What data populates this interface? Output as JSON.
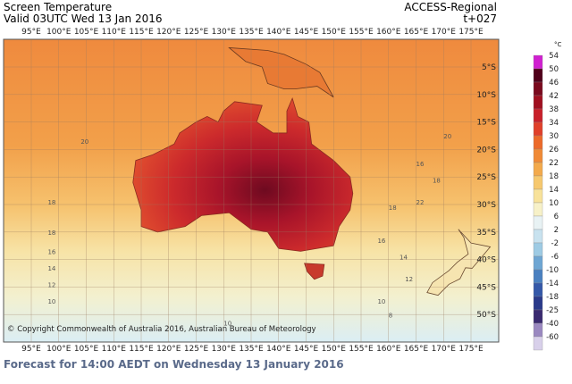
{
  "header": {
    "title": "Screen Temperature",
    "valid": "Valid 03UTC Wed 13 Jan 2016",
    "model": "ACCESS-Regional",
    "lead": "t+027"
  },
  "map": {
    "lon_labels": [
      "95°E",
      "100°E",
      "105°E",
      "110°E",
      "115°E",
      "120°E",
      "125°E",
      "130°E",
      "135°E",
      "140°E",
      "145°E",
      "150°E",
      "155°E",
      "160°E",
      "165°E",
      "170°E",
      "175°E"
    ],
    "lat_labels": [
      "5°S",
      "10°S",
      "15°S",
      "20°S",
      "25°S",
      "30°S",
      "35°S",
      "40°S",
      "45°S",
      "50°S"
    ],
    "contour_labels": [
      "18",
      "18",
      "16",
      "14",
      "12",
      "10",
      "10",
      "20",
      "22",
      "18",
      "16",
      "14",
      "12",
      "10",
      "8",
      "16",
      "18",
      "20"
    ],
    "copyright": "© Copyright Commonwealth of Australia 2016, Australian Bureau of Meteorology"
  },
  "legend": {
    "unit": "°C",
    "levels": [
      "54",
      "50",
      "46",
      "42",
      "38",
      "34",
      "30",
      "26",
      "22",
      "18",
      "14",
      "10",
      "6",
      "2",
      "-2",
      "-6",
      "-10",
      "-14",
      "-18",
      "-25",
      "-40",
      "-60"
    ],
    "colors": [
      "#d020d0",
      "#50001a",
      "#7a0a1e",
      "#a01020",
      "#c8202a",
      "#e0402a",
      "#ec6a2a",
      "#f08a36",
      "#f3aa4c",
      "#f6c86e",
      "#f8e29a",
      "#f7f1c8",
      "#e8f2f4",
      "#c8e2ef",
      "#9ecbe4",
      "#6ea6d3",
      "#4a80c0",
      "#3458a8",
      "#2a3a8a",
      "#3a2a70",
      "#9a88c0",
      "#d8d0ea"
    ]
  },
  "footer": {
    "forecast": "Forecast for 14:00 AEDT on Wednesday 13 January 2016"
  }
}
